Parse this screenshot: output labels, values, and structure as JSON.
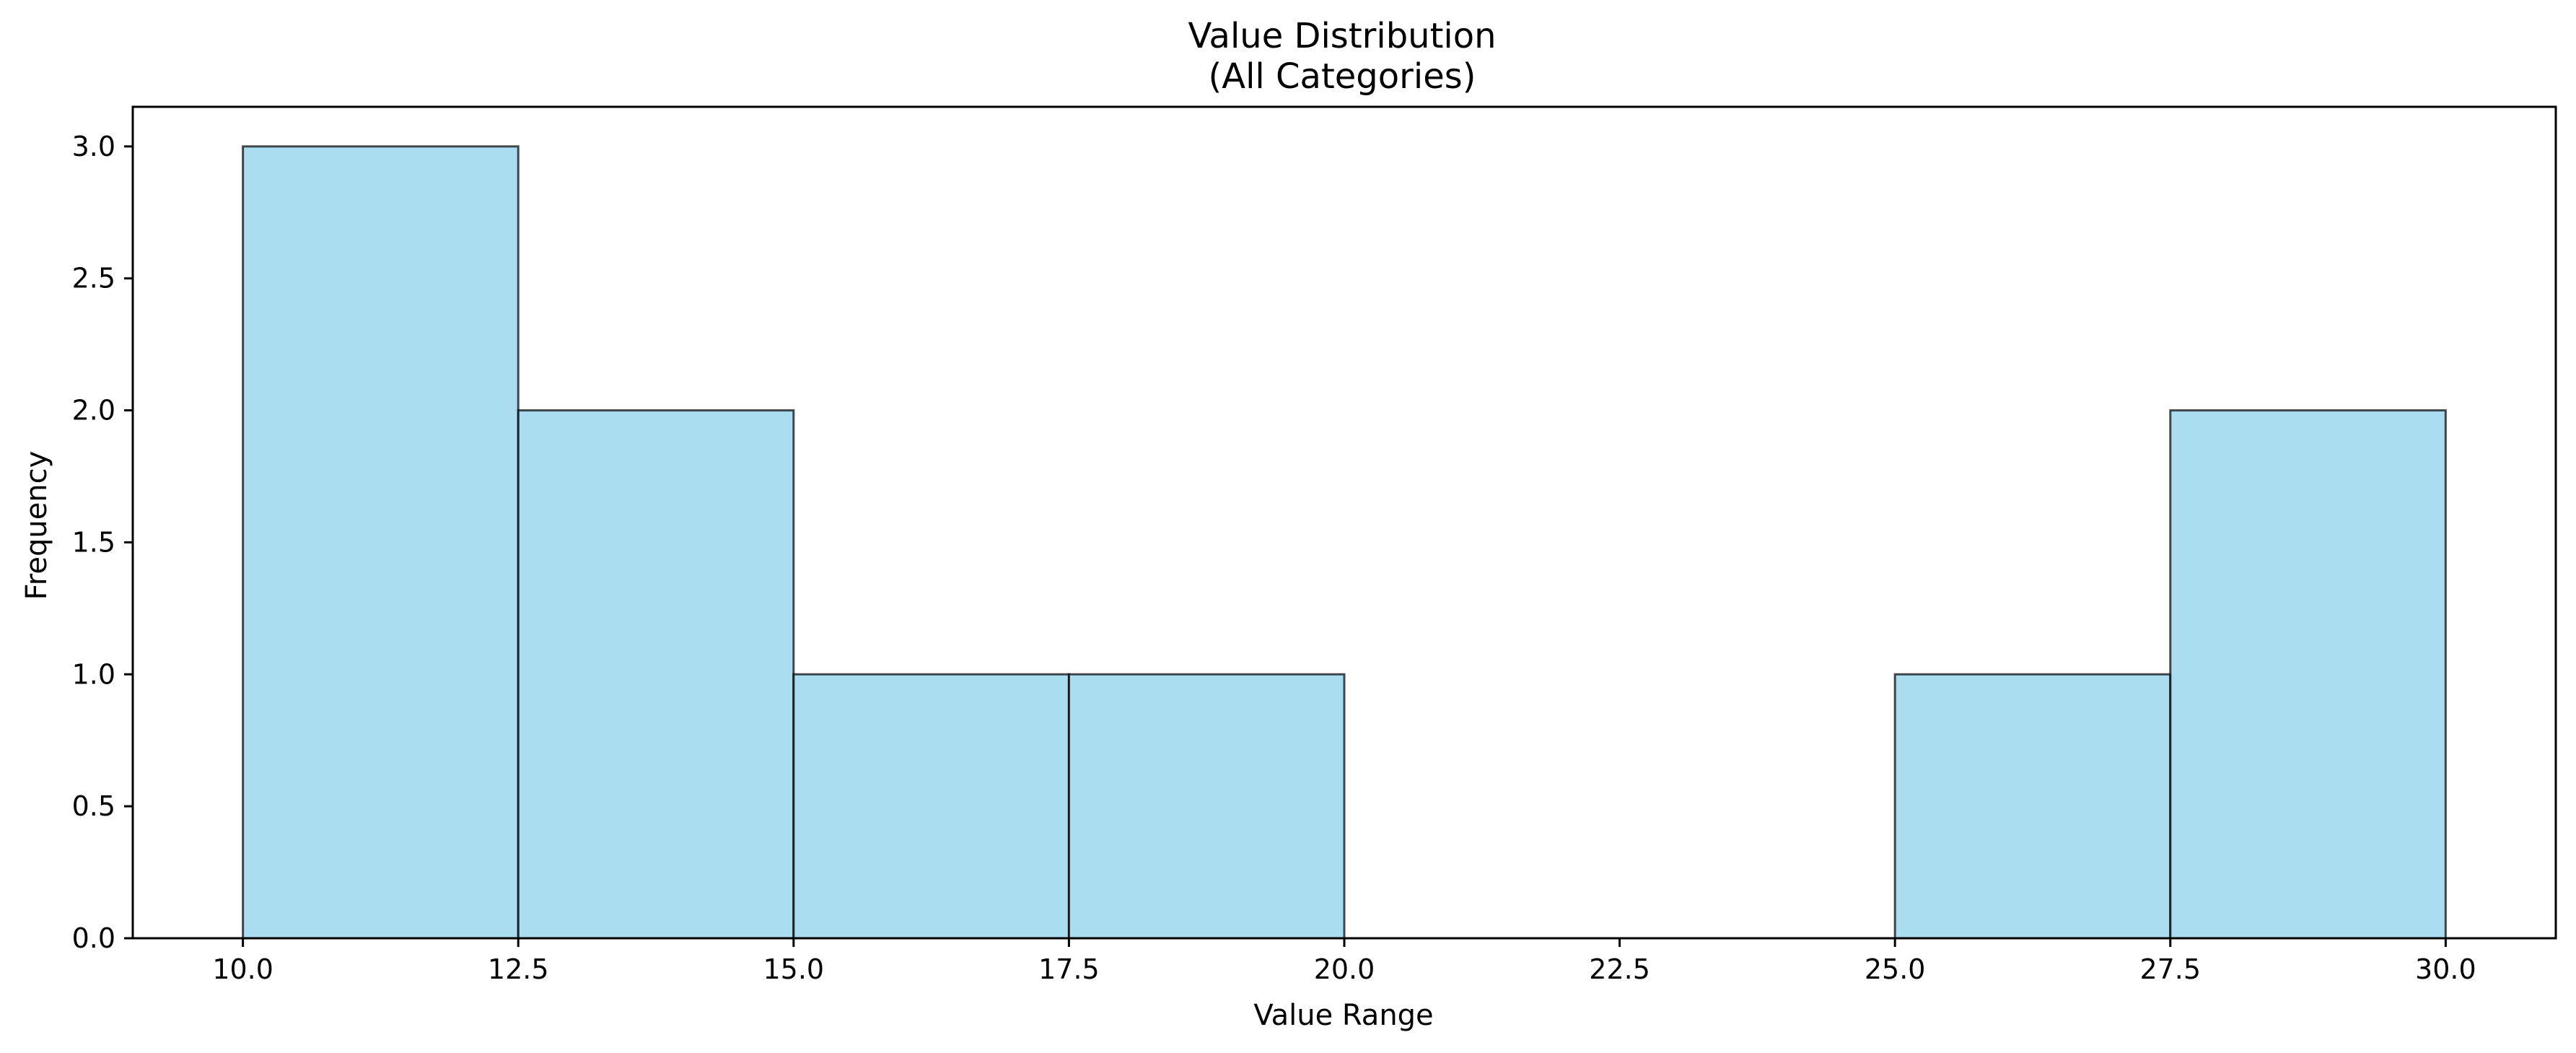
{
  "chart_data": {
    "type": "bar",
    "subtype": "histogram",
    "title": "Value Distribution",
    "subtitle": "(All Categories)",
    "xlabel": "Value Range",
    "ylabel": "Frequency",
    "xlim": [
      9.0,
      31.0
    ],
    "ylim": [
      0,
      3.15
    ],
    "x_ticks": [
      "10.0",
      "12.5",
      "15.0",
      "17.5",
      "20.0",
      "22.5",
      "25.0",
      "27.5",
      "30.0"
    ],
    "y_ticks": [
      "0.0",
      "0.5",
      "1.0",
      "1.5",
      "2.0",
      "2.5",
      "3.0"
    ],
    "bins": [
      {
        "start": 10.0,
        "end": 12.5,
        "count": 3
      },
      {
        "start": 12.5,
        "end": 15.0,
        "count": 2
      },
      {
        "start": 15.0,
        "end": 17.5,
        "count": 1
      },
      {
        "start": 17.5,
        "end": 20.0,
        "count": 1
      },
      {
        "start": 20.0,
        "end": 22.5,
        "count": 0
      },
      {
        "start": 22.5,
        "end": 25.0,
        "count": 0
      },
      {
        "start": 25.0,
        "end": 27.5,
        "count": 1
      },
      {
        "start": 27.5,
        "end": 30.0,
        "count": 2
      }
    ],
    "bar_color": "#87CEEB",
    "bar_edge_color": "#000000",
    "grid": false,
    "legend": "none"
  }
}
